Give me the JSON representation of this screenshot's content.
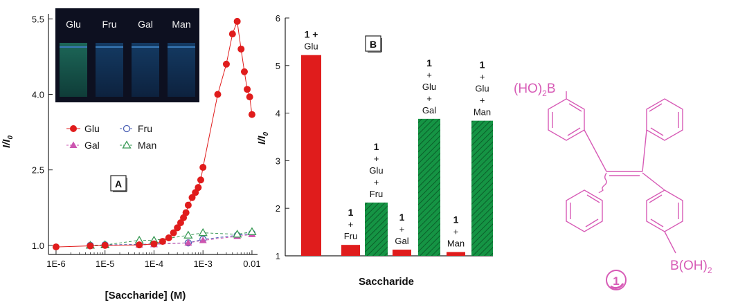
{
  "colors": {
    "red": "#e01c1c",
    "green": "#159444",
    "magenta": "#cc55b0",
    "hollow_blue": "#4a5fb4",
    "hollow_green": "#3a9a56",
    "molecule": "#d75bb6",
    "photo_bg": "#0d1020"
  },
  "chart_data": [
    {
      "type": "scatter",
      "panel_label": "A",
      "xlabel": "[Saccharide] (M)",
      "ylabel": "I/I",
      "ylabel_sub": "0",
      "x_scale": "log",
      "xlim": [
        7e-07,
        0.013
      ],
      "ylim": [
        0.82,
        5.6
      ],
      "x_ticks": [
        {
          "v": 1e-06,
          "label": "1E-6"
        },
        {
          "v": 1e-05,
          "label": "1E-5"
        },
        {
          "v": 0.0001,
          "label": "1E-4"
        },
        {
          "v": 0.001,
          "label": "1E-3"
        },
        {
          "v": 0.01,
          "label": "0.01"
        }
      ],
      "y_ticks": [
        {
          "v": 1.0,
          "label": "1.0"
        },
        {
          "v": 2.5,
          "label": "2.5"
        },
        {
          "v": 4.0,
          "label": "4.0"
        },
        {
          "v": 5.5,
          "label": "5.5"
        }
      ],
      "legend_position": "middle-left",
      "inset_photo_labels": [
        "Glu",
        "Fru",
        "Gal",
        "Man"
      ],
      "series": [
        {
          "name": "Glu",
          "marker": "filled-circle",
          "color": "#e01c1c",
          "line": "solid",
          "x": [
            1e-06,
            5e-06,
            1e-05,
            5e-05,
            0.0001,
            0.00015,
            0.0002,
            0.00025,
            0.0003,
            0.00035,
            0.0004,
            0.00045,
            0.0005,
            0.0006,
            0.0007,
            0.0008,
            0.0009,
            0.001,
            0.002,
            0.003,
            0.004,
            0.005,
            0.006,
            0.007,
            0.008,
            0.009,
            0.01
          ],
          "y": [
            0.97,
            0.99,
            1.0,
            1.01,
            1.03,
            1.08,
            1.15,
            1.25,
            1.35,
            1.45,
            1.55,
            1.65,
            1.8,
            1.95,
            2.05,
            2.15,
            2.3,
            2.55,
            4.0,
            4.6,
            5.2,
            5.45,
            4.9,
            4.45,
            4.1,
            3.95,
            3.6
          ]
        },
        {
          "name": "Fru",
          "marker": "hollow-circle",
          "color": "#4a5fb4",
          "line": "dashed",
          "x": [
            5e-06,
            1e-05,
            5e-05,
            0.0001,
            0.0005,
            0.001,
            0.005,
            0.01
          ],
          "y": [
            1.0,
            1.01,
            1.02,
            1.03,
            1.05,
            1.12,
            1.2,
            1.24
          ]
        },
        {
          "name": "Gal",
          "marker": "filled-triangle",
          "color": "#cc55b0",
          "line": "dashed",
          "x": [
            5e-06,
            1e-05,
            5e-05,
            0.0001,
            0.0005,
            0.001,
            0.005,
            0.01
          ],
          "y": [
            0.99,
            1.0,
            1.01,
            1.02,
            1.05,
            1.1,
            1.18,
            1.22
          ]
        },
        {
          "name": "Man",
          "marker": "hollow-triangle",
          "color": "#3a9a56",
          "line": "dashed",
          "x": [
            5e-06,
            1e-05,
            5e-05,
            0.0001,
            0.0005,
            0.001,
            0.005,
            0.01
          ],
          "y": [
            1.0,
            1.01,
            1.1,
            1.1,
            1.2,
            1.25,
            1.22,
            1.27
          ]
        }
      ]
    },
    {
      "type": "bar",
      "panel_label": "B",
      "xlabel": "Saccharide",
      "ylabel": "I/I",
      "ylabel_sub": "0",
      "ylim": [
        1,
        6
      ],
      "y_ticks": [
        1,
        2,
        3,
        4,
        5,
        6
      ],
      "bars": [
        {
          "value": 5.22,
          "color": "#e01c1c",
          "hatched": false,
          "label_lines": [
            "1 +",
            "Glu"
          ]
        },
        {
          "value": 1.23,
          "color": "#e01c1c",
          "hatched": false,
          "label_lines": [
            "1",
            "+",
            "Fru"
          ]
        },
        {
          "value": 2.12,
          "color": "#159444",
          "hatched": true,
          "label_lines": [
            "1",
            "+",
            "Glu",
            "+",
            "Fru"
          ]
        },
        {
          "value": 1.13,
          "color": "#e01c1c",
          "hatched": false,
          "label_lines": [
            "1",
            "+",
            "Gal"
          ]
        },
        {
          "value": 3.88,
          "color": "#159444",
          "hatched": true,
          "label_lines": [
            "1",
            "+",
            "Glu",
            "+",
            "Gal"
          ]
        },
        {
          "value": 1.08,
          "color": "#e01c1c",
          "hatched": false,
          "label_lines": [
            "1",
            "+",
            "Man"
          ]
        },
        {
          "value": 3.84,
          "color": "#159444",
          "hatched": true,
          "label_lines": [
            "1",
            "+",
            "Glu",
            "+",
            "Man"
          ]
        }
      ]
    }
  ],
  "molecule": {
    "label_top": "(HO)",
    "label_top_sub": "2",
    "label_top_atom": "B",
    "label_bottom": "B(OH)",
    "label_bottom_sub": "2",
    "compound_number": "1"
  }
}
